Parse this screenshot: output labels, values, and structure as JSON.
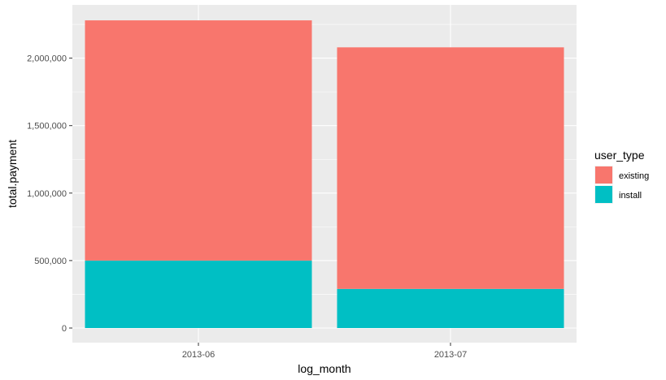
{
  "chart_data": {
    "type": "bar",
    "stacked": true,
    "categories": [
      "2013-06",
      "2013-07"
    ],
    "series": [
      {
        "name": "existing",
        "color": "#F8766D",
        "values": [
          1780000,
          1790000
        ]
      },
      {
        "name": "install",
        "color": "#00BFC4",
        "values": [
          500000,
          290000
        ]
      }
    ],
    "xlabel": "log_month",
    "ylabel": "total.payment",
    "ylim": [
      0,
      2280000
    ],
    "yticks": [
      0,
      500000,
      1000000,
      1500000,
      2000000
    ],
    "ytick_labels": [
      "0",
      "500,000",
      "1,000,000",
      "1,500,000",
      "2,000,000"
    ],
    "legend": {
      "title": "user_type",
      "position": "right",
      "entries": [
        "existing",
        "install"
      ]
    },
    "grid": true,
    "panel_background": "#EBEBEB",
    "grid_color": "#FFFFFF"
  }
}
